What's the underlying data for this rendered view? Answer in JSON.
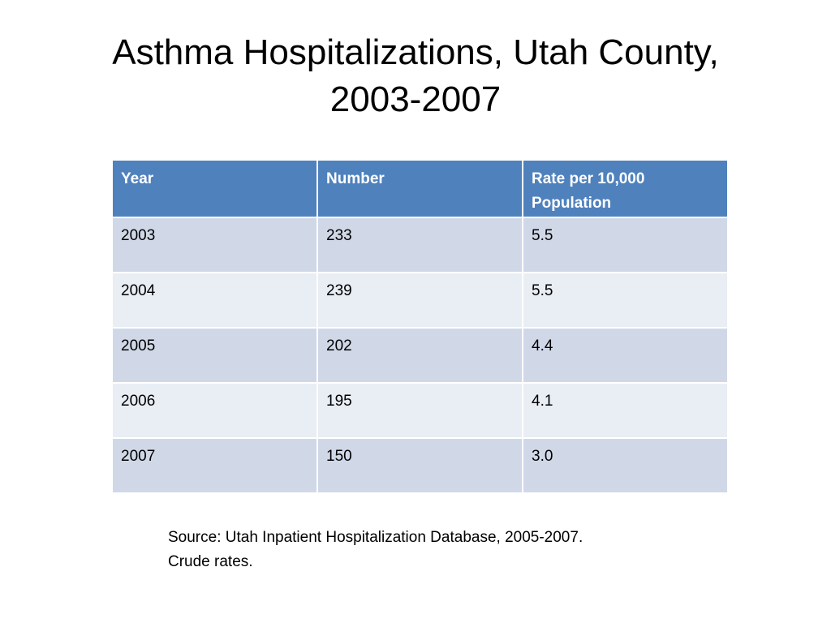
{
  "slide": {
    "title_line1": "Asthma Hospitalizations, Utah County,",
    "title_line2": "2003-2007"
  },
  "table": {
    "headers": {
      "year": "Year",
      "number": "Number",
      "rate_line1": "Rate per 10,000",
      "rate_line2": "Population"
    },
    "rows": [
      {
        "year": "2003",
        "number": "233",
        "rate": "5.5"
      },
      {
        "year": "2004",
        "number": "239",
        "rate": "5.5"
      },
      {
        "year": "2005",
        "number": "202",
        "rate": "4.4"
      },
      {
        "year": "2006",
        "number": "195",
        "rate": "4.1"
      },
      {
        "year": "2007",
        "number": "150",
        "rate": "3.0"
      }
    ]
  },
  "source": {
    "line1": "Source: Utah Inpatient Hospitalization Database, 2005-2007.",
    "line2": "Crude rates."
  },
  "colors": {
    "header_bg": "#4f81bd",
    "row_odd_bg": "#d0d8e8",
    "row_even_bg": "#e9edf4"
  }
}
